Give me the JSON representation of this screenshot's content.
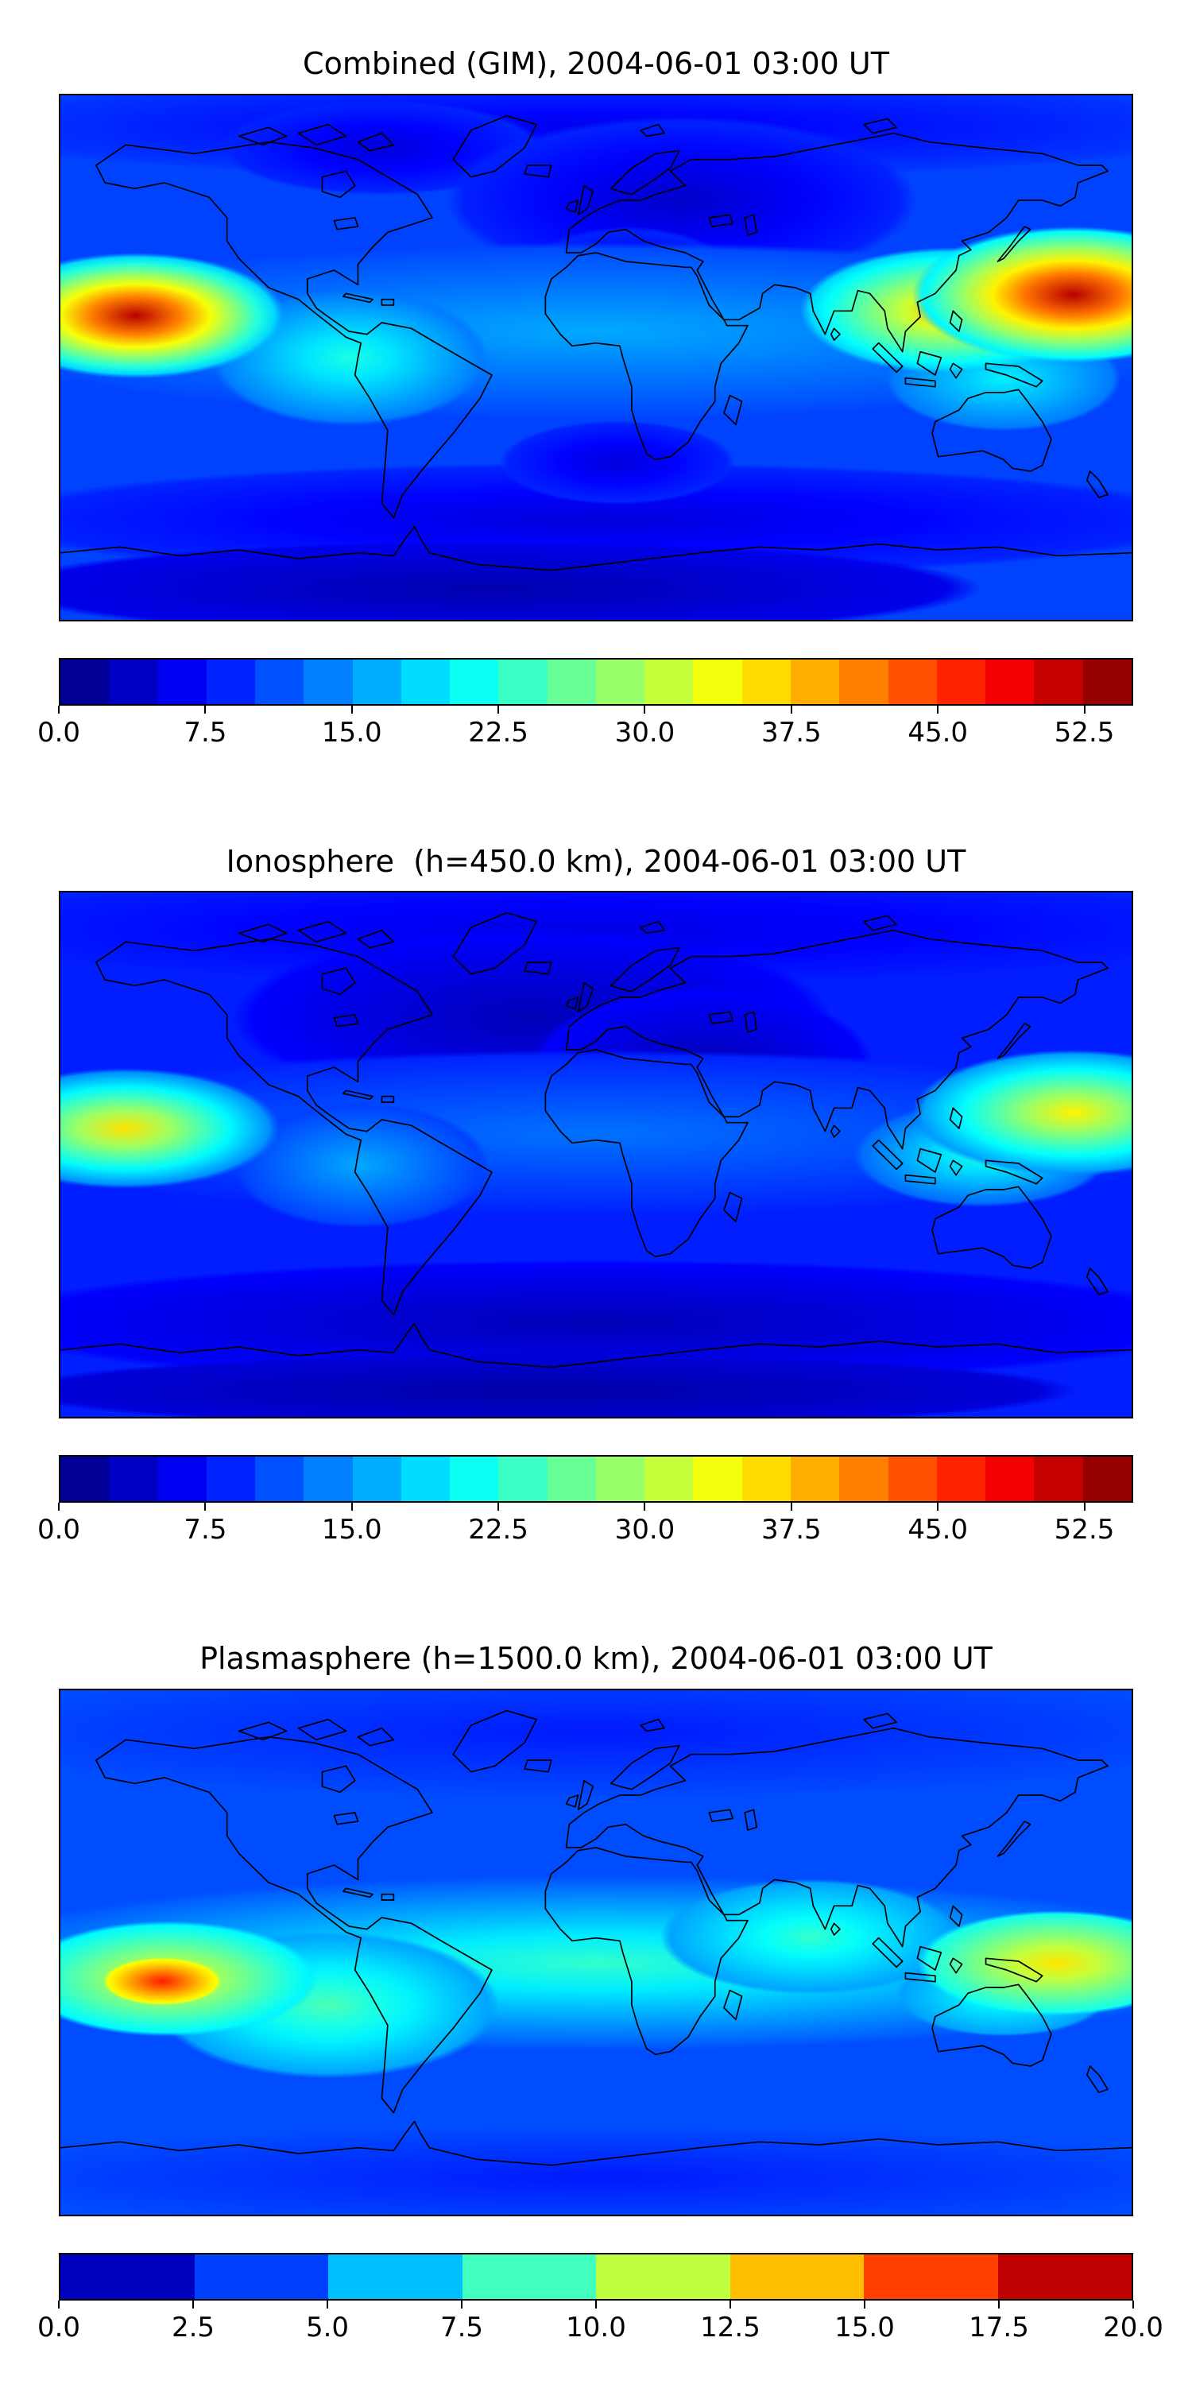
{
  "figure": {
    "background": "#ffffff",
    "panels": [
      {
        "title": "Combined (GIM), 2004-06-01 03:00 UT",
        "colorbar_ticks": [
          "0.0",
          "7.5",
          "15.0",
          "22.5",
          "30.0",
          "37.5",
          "45.0",
          "52.5"
        ]
      },
      {
        "title": "Ionosphere  (h=450.0 km), 2004-06-01 03:00 UT",
        "colorbar_ticks": [
          "0.0",
          "7.5",
          "15.0",
          "22.5",
          "30.0",
          "37.5",
          "45.0",
          "52.5"
        ]
      },
      {
        "title": "Plasmasphere (h=1500.0 km), 2004-06-01 03:00 UT",
        "colorbar_ticks": [
          "0.0",
          "2.5",
          "5.0",
          "7.5",
          "10.0",
          "12.5",
          "15.0",
          "17.5",
          "20.0"
        ]
      }
    ]
  },
  "chart_data": [
    {
      "type": "heatmap",
      "subtype": "filled_contour_world_map",
      "title": "Combined (GIM), 2004-06-01 03:00 UT",
      "colormap": "jet",
      "vmin": 0,
      "vmax": 55,
      "level_step": 2.5,
      "colorbar_ticks": [
        0.0,
        7.5,
        15.0,
        22.5,
        30.0,
        37.5,
        45.0,
        52.5
      ],
      "map_extent": {
        "lon": [
          -180,
          180
        ],
        "lat": [
          -90,
          90
        ]
      },
      "coastlines": true,
      "field": {
        "base": 10.5,
        "blobs": [
          {
            "cx": 0.5,
            "cy": 0.06,
            "rx": 0.62,
            "ry": 0.1,
            "peak": 6,
            "edge": 10
          },
          {
            "cx": 0.3,
            "cy": 0.1,
            "rx": 0.15,
            "ry": 0.09,
            "peak": 5,
            "edge": 9
          },
          {
            "cx": 0.58,
            "cy": 0.2,
            "rx": 0.22,
            "ry": 0.16,
            "peak": 4,
            "edge": 9
          },
          {
            "cx": 0.53,
            "cy": 0.37,
            "rx": 0.11,
            "ry": 0.12,
            "peak": 5,
            "edge": 9
          },
          {
            "cx": 0.5,
            "cy": 0.81,
            "rx": 0.58,
            "ry": 0.11,
            "peak": 5,
            "edge": 9
          },
          {
            "cx": 0.4,
            "cy": 0.94,
            "rx": 0.46,
            "ry": 0.09,
            "peak": 2.5,
            "edge": 6
          },
          {
            "cx": 0.52,
            "cy": 0.7,
            "rx": 0.11,
            "ry": 0.08,
            "peak": 5,
            "edge": 9
          },
          {
            "cx": 0.5,
            "cy": 0.45,
            "rx": 0.62,
            "ry": 0.17,
            "peak": 16,
            "edge": 10.5
          },
          {
            "cx": 0.27,
            "cy": 0.5,
            "rx": 0.13,
            "ry": 0.13,
            "peak": 22,
            "edge": 13
          },
          {
            "cx": 0.88,
            "cy": 0.54,
            "rx": 0.11,
            "ry": 0.1,
            "peak": 20,
            "edge": 13
          },
          {
            "cx": 0.83,
            "cy": 0.41,
            "rx": 0.14,
            "ry": 0.12,
            "peak": 38,
            "edge": 17
          },
          {
            "cx": 0.945,
            "cy": 0.38,
            "rx": 0.15,
            "ry": 0.13,
            "peak": 52,
            "edge": 18
          },
          {
            "cx": 0.07,
            "cy": 0.42,
            "rx": 0.14,
            "ry": 0.12,
            "peak": 52,
            "edge": 16
          }
        ]
      }
    },
    {
      "type": "heatmap",
      "subtype": "filled_contour_world_map",
      "title": "Ionosphere  (h=450.0 km), 2004-06-01 03:00 UT",
      "colormap": "jet",
      "vmin": 0,
      "vmax": 55,
      "level_step": 2.5,
      "colorbar_ticks": [
        0.0,
        7.5,
        15.0,
        22.5,
        30.0,
        37.5,
        45.0,
        52.5
      ],
      "map_extent": {
        "lon": [
          -180,
          180
        ],
        "lat": [
          -90,
          90
        ]
      },
      "coastlines": true,
      "field": {
        "base": 8.5,
        "blobs": [
          {
            "cx": 0.5,
            "cy": 0.07,
            "rx": 0.62,
            "ry": 0.11,
            "peak": 5.5,
            "edge": 8.5
          },
          {
            "cx": 0.44,
            "cy": 0.24,
            "rx": 0.28,
            "ry": 0.17,
            "peak": 3,
            "edge": 7
          },
          {
            "cx": 0.6,
            "cy": 0.33,
            "rx": 0.16,
            "ry": 0.15,
            "peak": 3,
            "edge": 7
          },
          {
            "cx": 0.5,
            "cy": 0.82,
            "rx": 0.58,
            "ry": 0.12,
            "peak": 3,
            "edge": 7
          },
          {
            "cx": 0.45,
            "cy": 0.95,
            "rx": 0.5,
            "ry": 0.07,
            "peak": 2,
            "edge": 5
          },
          {
            "cx": 0.5,
            "cy": 0.46,
            "rx": 0.62,
            "ry": 0.16,
            "peak": 13,
            "edge": 8.5
          },
          {
            "cx": 0.28,
            "cy": 0.52,
            "rx": 0.12,
            "ry": 0.12,
            "peak": 16,
            "edge": 10
          },
          {
            "cx": 0.86,
            "cy": 0.5,
            "rx": 0.12,
            "ry": 0.1,
            "peak": 22,
            "edge": 12
          },
          {
            "cx": 0.945,
            "cy": 0.42,
            "rx": 0.15,
            "ry": 0.12,
            "peak": 35,
            "edge": 14
          },
          {
            "cx": 0.06,
            "cy": 0.45,
            "rx": 0.145,
            "ry": 0.115,
            "peak": 36,
            "edge": 13
          }
        ]
      }
    },
    {
      "type": "heatmap",
      "subtype": "filled_contour_world_map",
      "title": "Plasmasphere (h=1500.0 km), 2004-06-01 03:00 UT",
      "colormap": "jet",
      "vmin": 0,
      "vmax": 20,
      "level_step": 2.5,
      "colorbar_ticks": [
        0.0,
        2.5,
        5.0,
        7.5,
        10.0,
        12.5,
        15.0,
        17.5,
        20.0
      ],
      "map_extent": {
        "lon": [
          -180,
          180
        ],
        "lat": [
          -90,
          90
        ]
      },
      "coastlines": true,
      "field": {
        "base": 4,
        "blobs": [
          {
            "cx": 0.5,
            "cy": 0.08,
            "rx": 0.62,
            "ry": 0.13,
            "peak": 3,
            "edge": 4
          },
          {
            "cx": 0.5,
            "cy": 0.93,
            "rx": 0.62,
            "ry": 0.1,
            "peak": 3,
            "edge": 4
          },
          {
            "cx": 0.5,
            "cy": 0.52,
            "rx": 0.63,
            "ry": 0.17,
            "peak": 8.5,
            "edge": 4
          },
          {
            "cx": 0.25,
            "cy": 0.6,
            "rx": 0.16,
            "ry": 0.14,
            "peak": 9,
            "edge": 5.5
          },
          {
            "cx": 0.7,
            "cy": 0.47,
            "rx": 0.14,
            "ry": 0.11,
            "peak": 8.5,
            "edge": 5.5
          },
          {
            "cx": 0.88,
            "cy": 0.58,
            "rx": 0.1,
            "ry": 0.08,
            "peak": 8,
            "edge": 5.5
          },
          {
            "cx": 0.1,
            "cy": 0.55,
            "rx": 0.14,
            "ry": 0.11,
            "peak": 12.5,
            "edge": 7
          },
          {
            "cx": 0.93,
            "cy": 0.52,
            "rx": 0.13,
            "ry": 0.1,
            "peak": 13,
            "edge": 7.5
          },
          {
            "cx": 0.095,
            "cy": 0.555,
            "rx": 0.055,
            "ry": 0.045,
            "peak": 17,
            "edge": 12
          }
        ]
      }
    }
  ]
}
